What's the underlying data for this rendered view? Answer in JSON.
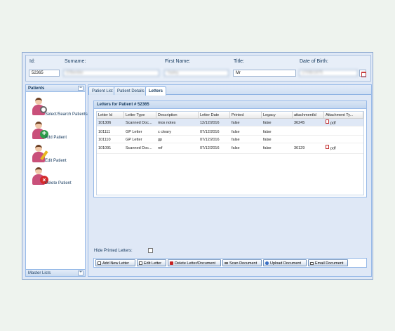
{
  "header": {
    "id_label": "Id:",
    "id_value": "52365",
    "surname_label": "Surname:",
    "surname_value": "O'Bentler",
    "firstname_label": "First Name:",
    "firstname_value": "Yadey",
    "title_label": "Title:",
    "title_value": "Mr",
    "dob_label": "Date of Birth:",
    "dob_value": "17/06/1975",
    "calendar_icon": "calendar-icon"
  },
  "sidebar": {
    "title": "Patients",
    "collapse": "−",
    "items": [
      {
        "label": "Select/Search Patients",
        "icon": "search-patient-icon"
      },
      {
        "label": "Add Patient",
        "icon": "add-patient-icon"
      },
      {
        "label": "Edit Patient",
        "icon": "edit-patient-icon"
      },
      {
        "label": "Delete Patient",
        "icon": "delete-patient-icon"
      }
    ],
    "footer": "Master Lists",
    "footer_expand": "+"
  },
  "tabs": [
    {
      "label": "Patient List"
    },
    {
      "label": "Patient Details"
    },
    {
      "label": "Letters"
    }
  ],
  "letters": {
    "title": "Letters for Patient # 52365",
    "columns": [
      "Letter Id",
      "Letter Type",
      "Description",
      "Letter Date",
      "Printed",
      "Legacy",
      "attachmentId",
      "Attachment Ty..."
    ],
    "rows": [
      {
        "id": "101306",
        "type": "Scanned Doc...",
        "desc": "mos notes",
        "date": "12/12/2016",
        "printed": "false",
        "legacy": "false",
        "attachment": "36245",
        "atype": "pdf"
      },
      {
        "id": "101111",
        "type": "GP Letter",
        "desc": "c cleary",
        "date": "07/12/2016",
        "printed": "false",
        "legacy": "false",
        "attachment": "",
        "atype": ""
      },
      {
        "id": "101110",
        "type": "GP Letter",
        "desc": "gp",
        "date": "07/12/2016",
        "printed": "false",
        "legacy": "false",
        "attachment": "",
        "atype": ""
      },
      {
        "id": "101091",
        "type": "Scanned Doc...",
        "desc": "ref",
        "date": "07/12/2016",
        "printed": "false",
        "legacy": "false",
        "attachment": "36129",
        "atype": "pdf"
      }
    ],
    "hide_printed_label": "Hide Printed Letters:"
  },
  "toolbar": {
    "add": "Add New Letter",
    "edit": "Edit Letter",
    "delete": "Delete Letter/Document",
    "scan": "Scan Document",
    "upload": "Upload Document",
    "email": "Email Document"
  }
}
